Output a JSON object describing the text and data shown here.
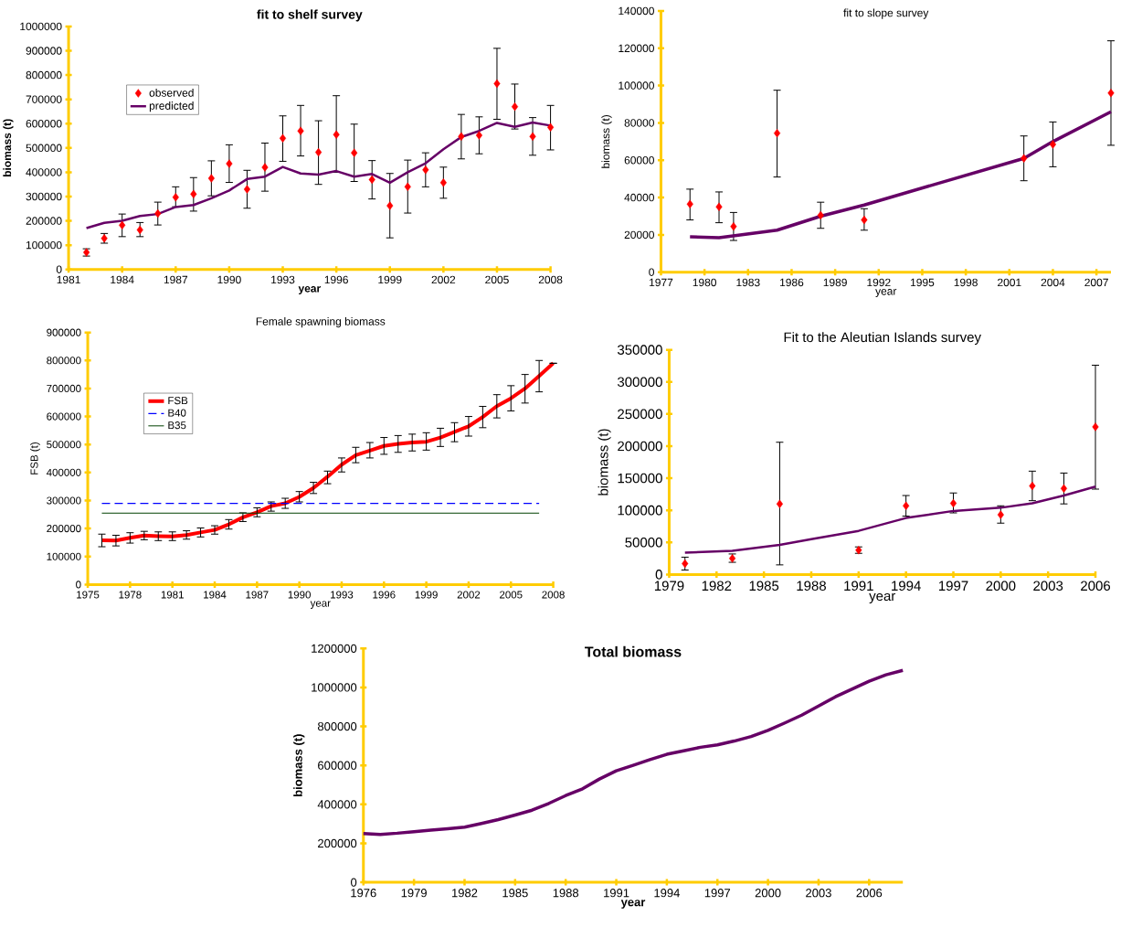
{
  "chart_data": [
    {
      "type": "line",
      "title": "fit to shelf survey",
      "xlabel": "year",
      "ylabel": "biomass (t)",
      "xlim": [
        1981,
        2008
      ],
      "xticks": [
        1981,
        1984,
        1987,
        1990,
        1993,
        1996,
        1999,
        2002,
        2005,
        2008
      ],
      "ylim": [
        0,
        1000000
      ],
      "yticks": [
        0,
        100000,
        200000,
        300000,
        400000,
        500000,
        600000,
        700000,
        800000,
        900000,
        1000000
      ],
      "legend": "top left",
      "x": [
        1982,
        1983,
        1984,
        1985,
        1986,
        1987,
        1988,
        1989,
        1990,
        1991,
        1992,
        1993,
        1994,
        1995,
        1996,
        1997,
        1998,
        1999,
        2000,
        2001,
        2002,
        2003,
        2004,
        2005,
        2006,
        2007,
        2008
      ],
      "series": [
        {
          "name": "observed",
          "type": "scatter",
          "marker": "diamond",
          "color": "#ff0000",
          "values": [
            70000,
            128000,
            182000,
            163000,
            230000,
            297000,
            310000,
            375000,
            435000,
            330000,
            420000,
            540000,
            570000,
            482000,
            555000,
            480000,
            370000,
            262000,
            340000,
            410000,
            357000,
            547000,
            552000,
            765000,
            670000,
            547000,
            585000
          ],
          "errors": [
            [
              55000,
              85000
            ],
            [
              108000,
              148000
            ],
            [
              135000,
              228000
            ],
            [
              135000,
              193000
            ],
            [
              183000,
              277000
            ],
            [
              258000,
              340000
            ],
            [
              240000,
              378000
            ],
            [
              303000,
              447000
            ],
            [
              358000,
              513000
            ],
            [
              252000,
              408000
            ],
            [
              322000,
              520000
            ],
            [
              445000,
              632000
            ],
            [
              467000,
              675000
            ],
            [
              350000,
              612000
            ],
            [
              400000,
              715000
            ],
            [
              362000,
              598000
            ],
            [
              290000,
              448000
            ],
            [
              130000,
              395000
            ],
            [
              232000,
              450000
            ],
            [
              340000,
              480000
            ],
            [
              293000,
              421000
            ],
            [
              455000,
              638000
            ],
            [
              476000,
              628000
            ],
            [
              618000,
              910000
            ],
            [
              578000,
              763000
            ],
            [
              470000,
              625000
            ],
            [
              492000,
              675000
            ]
          ]
        },
        {
          "name": "predicted",
          "type": "line",
          "marker": "none",
          "line_style": "solid",
          "color": "#660066",
          "values": [
            170000,
            192000,
            200000,
            220000,
            228000,
            257000,
            265000,
            293000,
            325000,
            372000,
            382000,
            422000,
            395000,
            390000,
            405000,
            382000,
            393000,
            357000,
            400000,
            437000,
            495000,
            545000,
            570000,
            603000,
            587000,
            605000,
            592000
          ]
        }
      ]
    },
    {
      "type": "line",
      "title": "fit to slope survey",
      "xlabel": "year",
      "ylabel": "biomass (t)",
      "xlim": [
        1977,
        2008
      ],
      "xticks": [
        1977,
        1980,
        1983,
        1986,
        1989,
        1992,
        1995,
        1998,
        2001,
        2004,
        2007
      ],
      "ylim": [
        0,
        140000
      ],
      "yticks": [
        0,
        20000,
        40000,
        60000,
        80000,
        100000,
        120000,
        140000
      ],
      "x": [
        1979,
        1981,
        1982,
        1985,
        1988,
        1991,
        2002,
        2004,
        2008
      ],
      "series": [
        {
          "type": "scatter",
          "marker": "diamond",
          "color": "#ff0000",
          "values": [
            36500,
            35000,
            24500,
            74500,
            30500,
            28000,
            61000,
            68500,
            96000
          ],
          "errors": [
            [
              28000,
              44500
            ],
            [
              26500,
              43000
            ],
            [
              17000,
              32000
            ],
            [
              51000,
              97500
            ],
            [
              23500,
              37500
            ],
            [
              22500,
              34000
            ],
            [
              49000,
              73000
            ],
            [
              56500,
              80500
            ],
            [
              68000,
              124000
            ]
          ]
        },
        {
          "type": "line",
          "marker": "none",
          "line_style": "solid",
          "color": "#660066",
          "values": [
            19000,
            18500,
            19500,
            22500,
            30000,
            36000,
            61000,
            70000,
            86000
          ]
        }
      ]
    },
    {
      "type": "line",
      "title": "Female spawning biomass",
      "xlabel": "year",
      "ylabel": "FSB (t)",
      "xlim": [
        1975,
        2008
      ],
      "xticks": [
        1975,
        1978,
        1981,
        1984,
        1987,
        1990,
        1993,
        1996,
        1999,
        2002,
        2005,
        2008
      ],
      "ylim": [
        0,
        900000
      ],
      "yticks": [
        0,
        100000,
        200000,
        300000,
        400000,
        500000,
        600000,
        700000,
        800000,
        900000
      ],
      "legend": "top left",
      "series": [
        {
          "name": "FSB",
          "marker": "none",
          "line_style": "solid",
          "color": "#ff0000",
          "x": [
            1976,
            1977,
            1978,
            1979,
            1980,
            1981,
            1982,
            1983,
            1984,
            1985,
            1986,
            1987,
            1988,
            1989,
            1990,
            1991,
            1992,
            1993,
            1994,
            1995,
            1996,
            1997,
            1998,
            1999,
            2000,
            2001,
            2002,
            2003,
            2004,
            2005,
            2006,
            2007,
            2008
          ],
          "values": [
            158000,
            157000,
            167000,
            175000,
            173000,
            172000,
            177000,
            186000,
            195000,
            215000,
            240000,
            258000,
            280000,
            290000,
            313000,
            345000,
            385000,
            428000,
            462000,
            478000,
            495000,
            502000,
            507000,
            510000,
            525000,
            545000,
            565000,
            598000,
            637000,
            665000,
            700000,
            745000,
            790000
          ],
          "errors": [
            [
              135000,
              180000
            ],
            [
              138000,
              176000
            ],
            [
              148000,
              185000
            ],
            [
              160000,
              190000
            ],
            [
              157000,
              188000
            ],
            [
              157000,
              188000
            ],
            [
              162000,
              192000
            ],
            [
              170000,
              202000
            ],
            [
              180000,
              210000
            ],
            [
              198000,
              232000
            ],
            [
              225000,
              256000
            ],
            [
              242000,
              274000
            ],
            [
              262000,
              295000
            ],
            [
              272000,
              308000
            ],
            [
              295000,
              332000
            ],
            [
              325000,
              365000
            ],
            [
              360000,
              405000
            ],
            [
              402000,
              452000
            ],
            [
              435000,
              490000
            ],
            [
              452000,
              507000
            ],
            [
              465000,
              525000
            ],
            [
              472000,
              532000
            ],
            [
              477000,
              537000
            ],
            [
              480000,
              542000
            ],
            [
              493000,
              558000
            ],
            [
              510000,
              578000
            ],
            [
              530000,
              600000
            ],
            [
              560000,
              636000
            ],
            [
              595000,
              678000
            ],
            [
              620000,
              710000
            ],
            [
              648000,
              750000
            ],
            [
              688000,
              800000
            ],
            null
          ]
        },
        {
          "name": "B40",
          "marker": "none",
          "line_style": "dashed",
          "color": "#0000ff",
          "x": [
            1976,
            2007
          ],
          "values": [
            290000,
            290000
          ]
        },
        {
          "name": "B35",
          "marker": "none",
          "line_style": "solid",
          "color": "#004000",
          "x": [
            1976,
            2007
          ],
          "values": [
            255000,
            255000
          ]
        }
      ]
    },
    {
      "type": "line",
      "title": "Fit to the Aleutian Islands survey",
      "xlabel": "year",
      "ylabel": "biomass (t)",
      "xlim": [
        1979,
        2006
      ],
      "xticks": [
        1979,
        1982,
        1985,
        1988,
        1991,
        1994,
        1997,
        2000,
        2003,
        2006
      ],
      "ylim": [
        0,
        350000
      ],
      "yticks": [
        0,
        50000,
        100000,
        150000,
        200000,
        250000,
        300000,
        350000
      ],
      "series": [
        {
          "type": "scatter",
          "marker": "diamond",
          "color": "#ff0000",
          "x": [
            1980,
            1983,
            1986,
            1991,
            1994,
            1997,
            2000,
            2002,
            2004,
            2006
          ],
          "values": [
            17000,
            25000,
            110000,
            38000,
            107000,
            111000,
            93000,
            138000,
            134000,
            230000
          ],
          "errors": [
            [
              7000,
              27000
            ],
            [
              19000,
              32000
            ],
            [
              15000,
              206000
            ],
            [
              33000,
              43000
            ],
            [
              91000,
              123000
            ],
            [
              96000,
              127000
            ],
            [
              80000,
              107000
            ],
            [
              115000,
              161000
            ],
            [
              110000,
              158000
            ],
            [
              133000,
              326000
            ]
          ]
        },
        {
          "type": "line",
          "marker": "none",
          "line_style": "solid",
          "color": "#660066",
          "x": [
            1980,
            1983,
            1986,
            1988,
            1991,
            1994,
            1997,
            2000,
            2002,
            2004,
            2006
          ],
          "values": [
            34000,
            37000,
            46000,
            55000,
            68000,
            88000,
            99000,
            104000,
            111000,
            123000,
            137000
          ]
        }
      ]
    },
    {
      "type": "line",
      "title": "Total biomass",
      "xlabel": "year",
      "ylabel": "biomass (t)",
      "xlim": [
        1976,
        2008
      ],
      "xticks": [
        1976,
        1979,
        1982,
        1985,
        1988,
        1991,
        1994,
        1997,
        2000,
        2003,
        2006
      ],
      "ylim": [
        0,
        1200000
      ],
      "yticks": [
        0,
        200000,
        400000,
        600000,
        800000,
        1000000,
        1200000
      ],
      "series": [
        {
          "marker": "none",
          "line_style": "solid",
          "color": "#660066",
          "x": [
            1976,
            1977,
            1978,
            1979,
            1980,
            1981,
            1982,
            1983,
            1984,
            1985,
            1986,
            1987,
            1988,
            1989,
            1990,
            1991,
            1992,
            1993,
            1994,
            1995,
            1996,
            1997,
            1998,
            1999,
            2000,
            2001,
            2002,
            2003,
            2004,
            2005,
            2006,
            2007,
            2008
          ],
          "values": [
            250000,
            246000,
            252000,
            260000,
            268000,
            275000,
            283000,
            302000,
            322000,
            345000,
            370000,
            405000,
            445000,
            480000,
            530000,
            572000,
            600000,
            630000,
            657000,
            675000,
            693000,
            705000,
            725000,
            748000,
            780000,
            818000,
            858000,
            905000,
            952000,
            992000,
            1032000,
            1065000,
            1088000
          ]
        }
      ]
    }
  ]
}
